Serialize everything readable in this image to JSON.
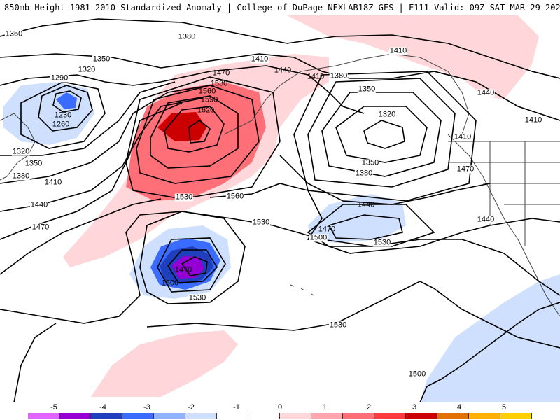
{
  "header": {
    "left": "850mb Height 1981-2010 Standardized Anomaly | College of DuPage NEXLAB",
    "right": "18Z GFS | F111 Valid: 09Z SAT MAR 29 2025"
  },
  "map": {
    "contour_labels": [
      "1350",
      "1380",
      "1290",
      "1320",
      "1350",
      "1230",
      "1260",
      "1320",
      "1350",
      "1380",
      "1410",
      "1440",
      "1470",
      "1410",
      "1440",
      "1470",
      "1530",
      "1560",
      "1590",
      "1620",
      "1410",
      "1380",
      "1350",
      "1320",
      "1350",
      "1380",
      "1410",
      "1440",
      "1470",
      "1500",
      "1530",
      "1560",
      "1530",
      "1530",
      "1500",
      "1470",
      "1530",
      "1410",
      "1440",
      "1410",
      "1470",
      "1440",
      "1530",
      "1500"
    ]
  },
  "legend": {
    "ticks": [
      "-5",
      "-4",
      "-3",
      "-2",
      "-1",
      "0",
      "1",
      "2",
      "3",
      "4",
      "5"
    ],
    "colors": [
      "#e066ff",
      "#9400d3",
      "#1f3fbf",
      "#3a6cff",
      "#8fb3ff",
      "#cfe0ff",
      "#ffffff",
      "#ffffff",
      "#ffd6d9",
      "#ffa7ad",
      "#ff6f78",
      "#ff3a3a",
      "#cc0000",
      "#e07000",
      "#ffb000",
      "#ffd000"
    ]
  }
}
